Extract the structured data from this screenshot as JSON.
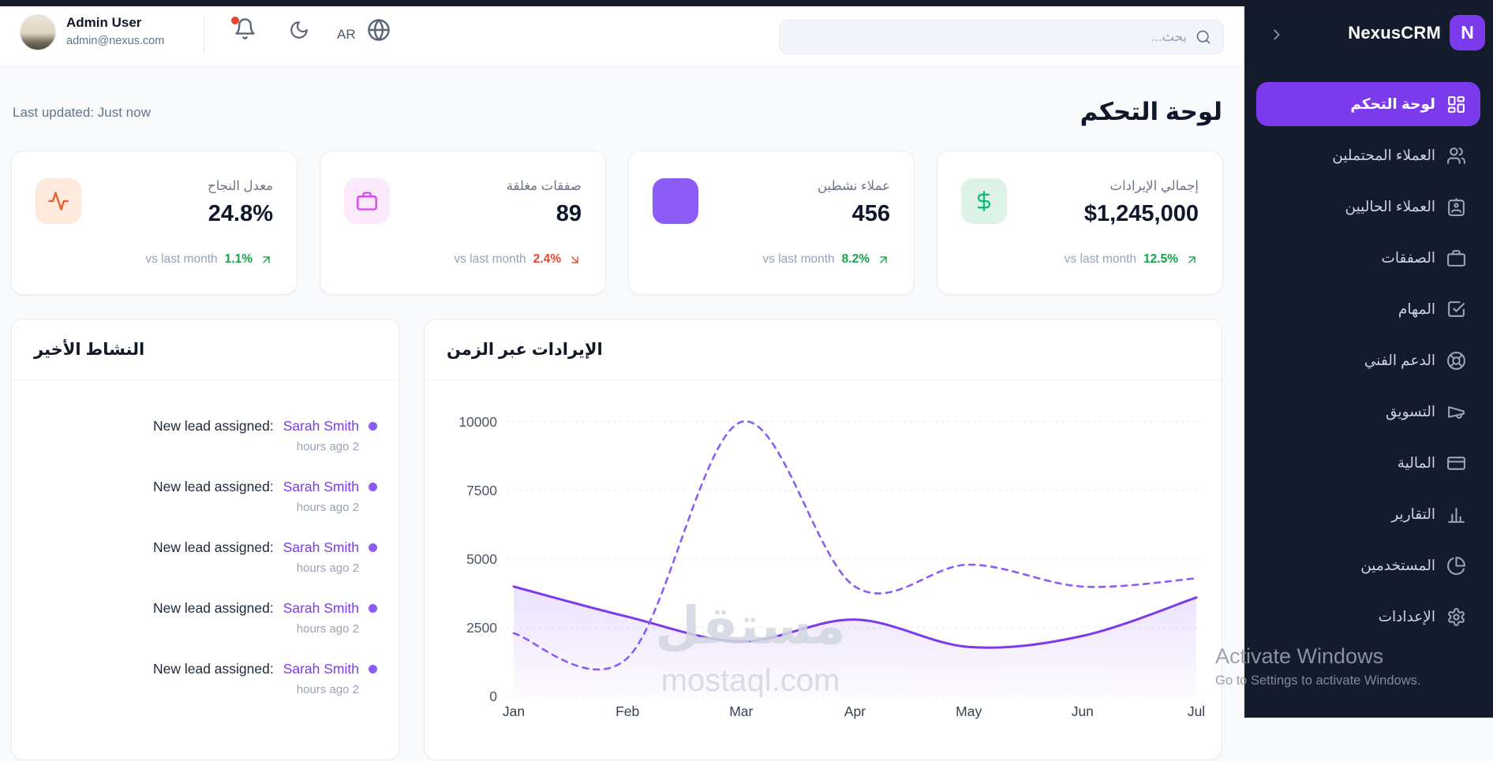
{
  "topbar": {
    "user": {
      "name": "Admin User",
      "email": "admin@nexus.com"
    },
    "language": "AR",
    "search_placeholder": "بحث...",
    "notification_dot_color": "#e5472d"
  },
  "sidebar": {
    "brand": "NexusCRM",
    "logo_letter": "N",
    "accent_color": "#7c3aed",
    "background_color": "#141b2c",
    "items": [
      {
        "id": "dashboard",
        "label": "لوحة التحكم",
        "icon": "dashboard-icon",
        "active": true
      },
      {
        "id": "leads",
        "label": "العملاء المحتملين",
        "icon": "leads-icon",
        "active": false
      },
      {
        "id": "clients",
        "label": "العملاء الحاليين",
        "icon": "clients-icon",
        "active": false
      },
      {
        "id": "deals",
        "label": "الصفقات",
        "icon": "deals-icon",
        "active": false
      },
      {
        "id": "tasks",
        "label": "المهام",
        "icon": "tasks-icon",
        "active": false
      },
      {
        "id": "support",
        "label": "الدعم الفني",
        "icon": "support-icon",
        "active": false
      },
      {
        "id": "marketing",
        "label": "التسويق",
        "icon": "marketing-icon",
        "active": false
      },
      {
        "id": "finance",
        "label": "المالية",
        "icon": "finance-icon",
        "active": false
      },
      {
        "id": "reports",
        "label": "التقارير",
        "icon": "reports-icon",
        "active": false
      },
      {
        "id": "users",
        "label": "المستخدمين",
        "icon": "users-icon",
        "active": false
      },
      {
        "id": "settings",
        "label": "الإعدادات",
        "icon": "settings-icon",
        "active": false
      }
    ]
  },
  "page": {
    "title": "لوحة التحكم",
    "last_updated": "Last updated: Just now"
  },
  "stats": [
    {
      "label": "إجمالي الإيرادات",
      "value": "$1,245,000",
      "vs_label": "vs last month",
      "change": "12.5%",
      "trend": "up",
      "change_color": "#16a34a",
      "icon": "dollar-icon",
      "icon_bg": "#ddf3e8",
      "icon_color": "#10b981"
    },
    {
      "label": "عملاء نشطين",
      "value": "456",
      "vs_label": "vs last month",
      "change": "8.2%",
      "trend": "up",
      "change_color": "#16a34a",
      "icon": "users-square-icon",
      "icon_bg": "#8b5cf6",
      "icon_color": "#8b5cf6"
    },
    {
      "label": "صفقات مغلقة",
      "value": "89",
      "vs_label": "vs last month",
      "change": "2.4%",
      "trend": "down",
      "change_color": "#e5472d",
      "icon": "briefcase-icon",
      "icon_bg": "#fbe9fc",
      "icon_color": "#d946ef"
    },
    {
      "label": "معدل النجاح",
      "value": "24.8%",
      "vs_label": "vs last month",
      "change": "1.1%",
      "trend": "up",
      "change_color": "#16a34a",
      "icon": "activity-icon",
      "icon_bg": "#fdeadc",
      "icon_color": "#ea5b2c"
    }
  ],
  "activity": {
    "title": "النشاط الأخير",
    "items": [
      {
        "text": "New lead assigned:",
        "name": "Sarah Smith",
        "time": "hours ago 2"
      },
      {
        "text": "New lead assigned:",
        "name": "Sarah Smith",
        "time": "hours ago 2"
      },
      {
        "text": "New lead assigned:",
        "name": "Sarah Smith",
        "time": "hours ago 2"
      },
      {
        "text": "New lead assigned:",
        "name": "Sarah Smith",
        "time": "hours ago 2"
      },
      {
        "text": "New lead assigned:",
        "name": "Sarah Smith",
        "time": "hours ago 2"
      }
    ]
  },
  "chart_data": {
    "type": "line",
    "title": "الإيرادات عبر الزمن",
    "x": [
      "Jan",
      "Feb",
      "Mar",
      "Apr",
      "May",
      "Jun",
      "Jul"
    ],
    "ylim": [
      0,
      10000
    ],
    "y_ticks": [
      0,
      2500,
      5000,
      7500,
      10000
    ],
    "grid": "horizontal-dashed",
    "legend": "none",
    "series": [
      {
        "name": "revenue-current",
        "style": "solid",
        "color": "#7c3aed",
        "area_fill": true,
        "values": [
          4000,
          2900,
          2000,
          2800,
          1800,
          2200,
          3600
        ]
      },
      {
        "name": "revenue-previous",
        "style": "dashed",
        "color": "#8b5cf6",
        "area_fill": false,
        "values": [
          2300,
          1400,
          10000,
          4000,
          4800,
          4000,
          4300
        ]
      }
    ]
  },
  "chart_watermark": {
    "arabic": "مستقل",
    "latin": "mostaql.com"
  },
  "activate_watermark": {
    "line1": "Activate Windows",
    "line2": "Go to Settings to activate Windows."
  }
}
